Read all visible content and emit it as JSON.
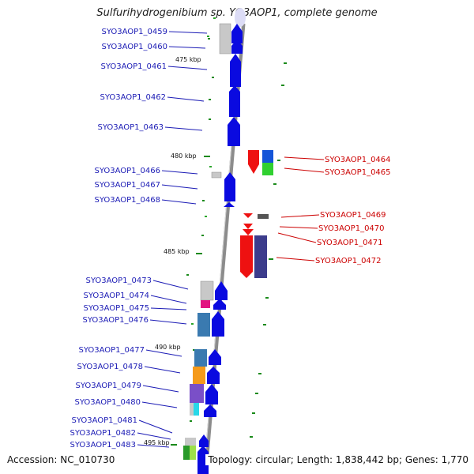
{
  "title": "Sulfurihydrogenibium sp. YO3AOP1, complete genome",
  "footer": {
    "accession": "Accession: NC_010730",
    "topology": "Topology: circular; Length: 1,838,442 bp; Genes: 1,770"
  },
  "kbp_markers": [
    "475 kbp",
    "480 kbp",
    "485 kbp",
    "490 kbp",
    "495 kbp"
  ],
  "genes_left": [
    "SYO3AOP1_0459",
    "SYO3AOP1_0460",
    "SYO3AOP1_0461",
    "SYO3AOP1_0462",
    "SYO3AOP1_0463",
    "SYO3AOP1_0466",
    "SYO3AOP1_0467",
    "SYO3AOP1_0468",
    "SYO3AOP1_0473",
    "SYO3AOP1_0474",
    "SYO3AOP1_0475",
    "SYO3AOP1_0476",
    "SYO3AOP1_0477",
    "SYO3AOP1_0478",
    "SYO3AOP1_0479",
    "SYO3AOP1_0480",
    "SYO3AOP1_0481",
    "SYO3AOP1_0482",
    "SYO3AOP1_0483"
  ],
  "genes_right": [
    "SYO3AOP1_0464",
    "SYO3AOP1_0465",
    "SYO3AOP1_0469",
    "SYO3AOP1_0470",
    "SYO3AOP1_0471",
    "SYO3AOP1_0472"
  ],
  "colors": {
    "forward_strand": "#0a0ae0",
    "reverse_strand": "#ee1111",
    "backbone": "#888888",
    "tick": "#1a8a1a",
    "label_left": "#1b1bb5",
    "label_right": "#cc0000"
  }
}
